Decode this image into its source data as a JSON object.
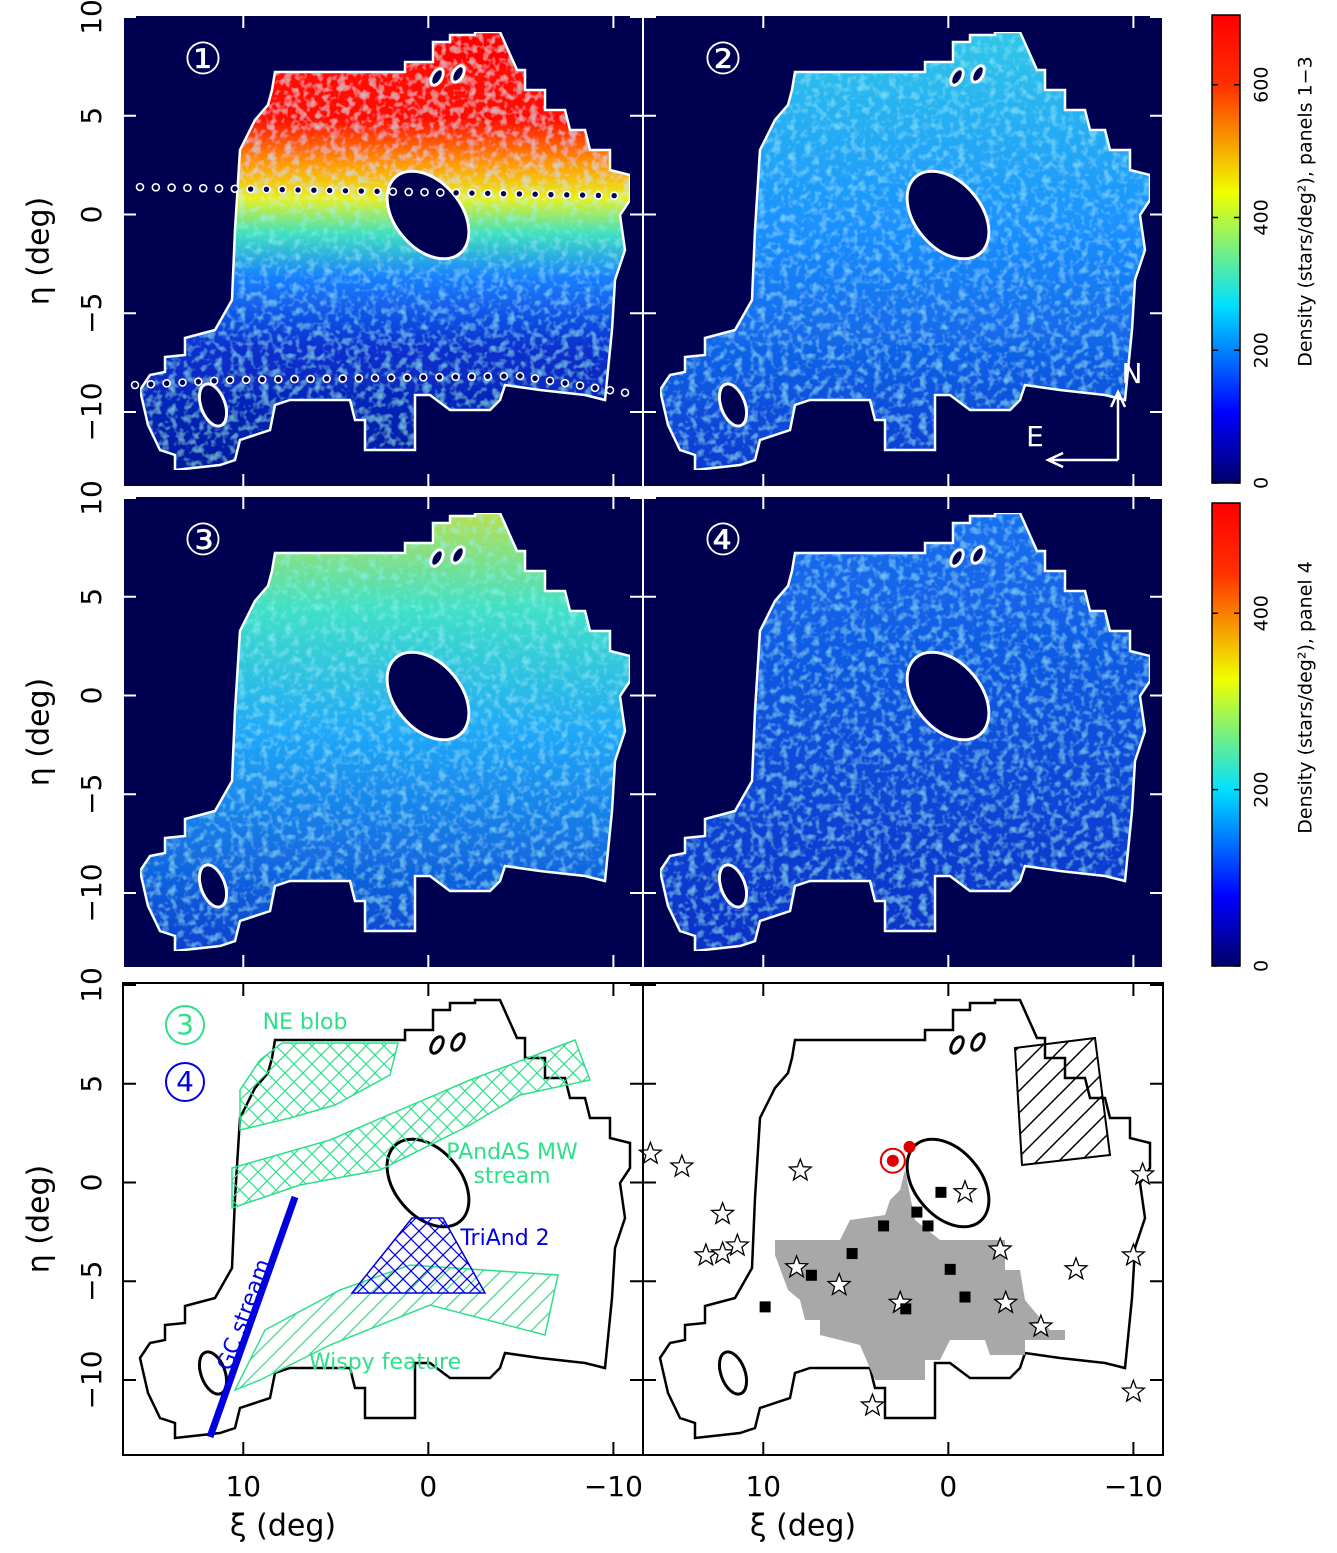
{
  "chart_data": [
    {
      "type": "density",
      "label": "①",
      "background": "#000050",
      "outline": "#ffffff",
      "xlim": [
        16.5,
        -11.6
      ],
      "ylim": [
        -13.8,
        10.1
      ],
      "xticks": [
        10,
        0,
        {
          "value": -10,
          "label": "−10"
        }
      ],
      "yticks": [
        10,
        5,
        0,
        {
          "value": -5,
          "label": "−5"
        },
        {
          "value": -10,
          "label": "−10"
        }
      ],
      "ylabel": "η (deg)"
    },
    {
      "type": "density",
      "label": "②",
      "background": "#000050",
      "outline": "#ffffff",
      "xlim": [
        16.5,
        -11.6
      ],
      "ylim": [
        -13.8,
        10.1
      ],
      "xticks": [
        10,
        0,
        {
          "value": -10,
          "label": "−10"
        }
      ],
      "yticks": [
        10,
        5,
        0,
        {
          "value": -5,
          "label": "−5"
        },
        {
          "value": -10,
          "label": "−10"
        }
      ],
      "compass": {
        "north": "N",
        "east": "E"
      }
    },
    {
      "type": "density",
      "label": "③",
      "background": "#000050",
      "outline": "#ffffff",
      "xlim": [
        16.5,
        -11.6
      ],
      "ylim": [
        -13.8,
        10.1
      ],
      "xticks": [
        10,
        0,
        {
          "value": -10,
          "label": "−10"
        }
      ],
      "yticks": [
        10,
        5,
        0,
        {
          "value": -5,
          "label": "−5"
        },
        {
          "value": -10,
          "label": "−10"
        }
      ],
      "ylabel": "η (deg)"
    },
    {
      "type": "density",
      "label": "④",
      "background": "#000050",
      "outline": "#ffffff",
      "xlim": [
        16.5,
        -11.6
      ],
      "ylim": [
        -13.8,
        10.1
      ],
      "xticks": [
        10,
        0,
        {
          "value": -10,
          "label": "−10"
        }
      ],
      "yticks": [
        10,
        5,
        0,
        {
          "value": -5,
          "label": "−5"
        },
        {
          "value": -10,
          "label": "−10"
        }
      ]
    },
    {
      "type": "regions",
      "background": "#ffffff",
      "outline": "#000000",
      "xlim": [
        16.5,
        -11.6
      ],
      "ylim": [
        -13.8,
        10.1
      ],
      "xticks": [
        10,
        0,
        {
          "value": -10,
          "label": "−10"
        }
      ],
      "yticks": [
        10,
        5,
        0,
        {
          "value": -5,
          "label": "−5"
        },
        {
          "value": -10,
          "label": "−10"
        }
      ],
      "xlabel": "ξ (deg)",
      "ylabel": "η (deg)",
      "keys": [
        {
          "text": "3",
          "color": "#2ee08a"
        },
        {
          "text": "4",
          "color": "#0000e0"
        }
      ],
      "annotations": [
        {
          "text": "NE blob",
          "color": "#2ee08a"
        },
        {
          "text": "PAndAS MW",
          "color": "#2ee08a"
        },
        {
          "text": "stream",
          "color": "#2ee08a"
        },
        {
          "text": "TriAnd 2",
          "color": "#0000e0"
        },
        {
          "text": "GC stream",
          "color": "#0000e0"
        },
        {
          "text": "Wispy feature",
          "color": "#2ee08a"
        }
      ]
    },
    {
      "type": "scatter",
      "background": "#ffffff",
      "outline": "#000000",
      "xlim": [
        16.5,
        -11.6
      ],
      "ylim": [
        -13.8,
        10.1
      ],
      "xticks": [
        10,
        0,
        {
          "value": -10,
          "label": "−10"
        }
      ],
      "yticks": [
        10,
        5,
        0,
        {
          "value": -5,
          "label": "−5"
        },
        {
          "value": -10,
          "label": "−10"
        }
      ],
      "xlabel": "ξ (deg)",
      "series": [
        {
          "marker": "star",
          "color": "#000000",
          "x": [
            16.1,
            14.4,
            12.2,
            13.1,
            12.2,
            11.4,
            8.2,
            8.0,
            5.9,
            4.1,
            2.6,
            -0.9,
            -2.8,
            -3.1,
            -5.0,
            -6.9,
            -10.0,
            -10.5,
            -10.0
          ],
          "y": [
            1.45,
            0.8,
            -1.6,
            -3.7,
            -3.6,
            -3.2,
            -4.3,
            0.6,
            -5.2,
            -11.3,
            -6.1,
            -0.5,
            -3.4,
            -6.1,
            -7.3,
            -4.4,
            -3.7,
            0.4,
            -10.6
          ]
        },
        {
          "marker": "square",
          "color": "#000000",
          "x": [
            0.4,
            1.7,
            1.1,
            3.5,
            5.2,
            -0.1,
            7.4,
            -0.9,
            2.3,
            9.9
          ],
          "y": [
            -0.5,
            -1.5,
            -2.2,
            -2.2,
            -3.6,
            -4.4,
            -4.7,
            -5.8,
            -6.4,
            -6.3
          ]
        },
        {
          "marker": "circled-dot",
          "color": "#e00000",
          "x": [
            3.0
          ],
          "y": [
            1.1
          ]
        },
        {
          "marker": "dot",
          "color": "#e00000",
          "x": [
            2.1
          ],
          "y": [
            1.8
          ]
        }
      ]
    },
    {
      "type": "colorbar",
      "label": "Density (stars/deg²), panels 1−3",
      "ylim": [
        0,
        705
      ],
      "yticks": [
        0,
        200,
        400,
        600
      ]
    },
    {
      "type": "colorbar",
      "label": "Density (stars/deg²), panel 4",
      "ylim": [
        0,
        525
      ],
      "yticks": [
        0,
        200,
        400
      ]
    }
  ]
}
